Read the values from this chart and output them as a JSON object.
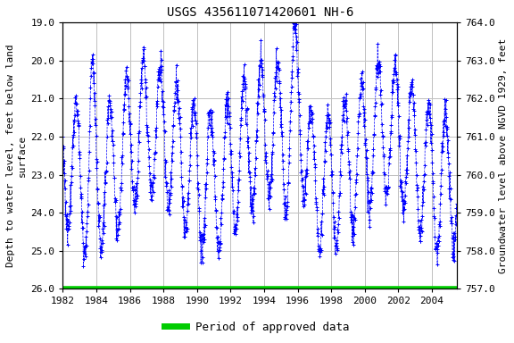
{
  "title": "USGS 435611071420601 NH-6",
  "ylabel_left": "Depth to water level, feet below land\nsurface",
  "ylabel_right": "Groundwater level above NGVD 1929, feet",
  "ylim_left": [
    26.0,
    19.0
  ],
  "ylim_right": [
    757.0,
    764.0
  ],
  "xlim": [
    1982,
    2005.5
  ],
  "yticks_left": [
    19.0,
    20.0,
    21.0,
    22.0,
    23.0,
    24.0,
    25.0,
    26.0
  ],
  "yticks_right": [
    757.0,
    758.0,
    759.0,
    760.0,
    761.0,
    762.0,
    763.0,
    764.0
  ],
  "xticks": [
    1982,
    1984,
    1986,
    1988,
    1990,
    1992,
    1994,
    1996,
    1998,
    2000,
    2002,
    2004
  ],
  "data_color": "#0000ff",
  "green_color": "#00cc00",
  "background_color": "#ffffff",
  "grid_color": "#c0c0c0",
  "legend_label": "Period of approved data",
  "title_fontsize": 10,
  "label_fontsize": 8,
  "tick_fontsize": 8,
  "legend_fontsize": 9
}
